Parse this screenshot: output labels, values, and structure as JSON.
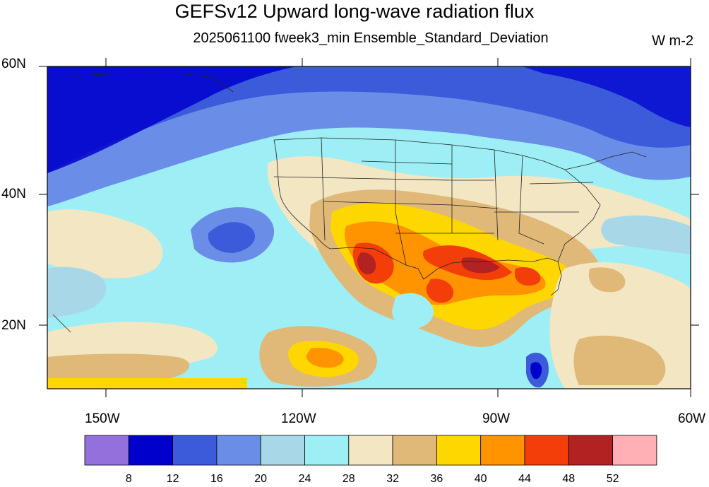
{
  "title": "GEFSv12 Upward long-wave radiation flux",
  "subtitle": "2025061100 fweek3_min Ensemble_Standard_Deviation",
  "units": "W m-2",
  "lat_labels": [
    "60N",
    "40N",
    "20N"
  ],
  "lon_labels": [
    "150W",
    "120W",
    "90W",
    "60W"
  ],
  "colorbar": {
    "colors": [
      "#9370db",
      "#0000cd",
      "#3b5bdb",
      "#6a8ee8",
      "#a8d8e8",
      "#9eeef5",
      "#f3e6c3",
      "#e0b878",
      "#ffd700",
      "#ff9400",
      "#f43e0a",
      "#b22222",
      "#ffb0b5"
    ],
    "tick_labels": [
      "8",
      "12",
      "16",
      "20",
      "24",
      "28",
      "32",
      "36",
      "40",
      "44",
      "48",
      "52"
    ]
  }
}
